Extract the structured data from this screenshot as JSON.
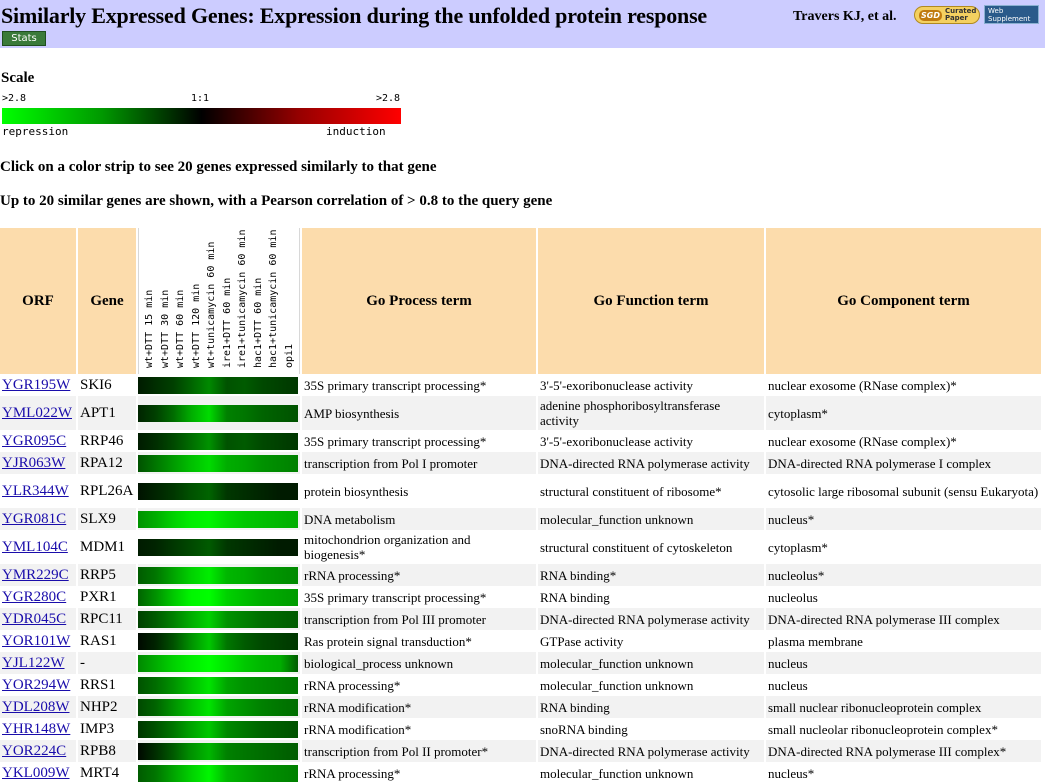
{
  "header": {
    "title": "Similarly Expressed Genes: Expression during the unfolded protein response",
    "authors": "Travers KJ, et al.",
    "sgd_badge_sgd": "SGD",
    "sgd_badge_line1": "Curated",
    "sgd_badge_line2": "Paper",
    "web_supp_line1": "Web",
    "web_supp_line2": "Supplement",
    "stats_button": "Stats"
  },
  "scale": {
    "title": "Scale",
    "left_label": ">2.8",
    "mid_label": "1:1",
    "right_label": ">2.8",
    "left_word": "repression",
    "right_word": "induction",
    "colors": {
      "repression": "#00ff00",
      "neutral": "#000000",
      "induction": "#ff0000"
    }
  },
  "instructions": {
    "line1": "Click on a color strip to see 20 genes expressed similarly to that gene",
    "line2": "Up to 20 similar genes are shown, with a Pearson correlation of > 0.8 to the query gene"
  },
  "table": {
    "headers": {
      "orf": "ORF",
      "gene": "Gene",
      "process": "Go Process term",
      "function": "Go Function term",
      "component": "Go Component term"
    },
    "conditions": [
      "wt+DTT 15 min",
      "wt+DTT 30 min",
      "wt+DTT 60 min",
      "wt+DTT 120 min",
      "wt+tunicamycin 60 min",
      "ire1+DTT 60 min",
      "ire1+tunicamycin 60 min",
      "hac1+DTT 60 min",
      "hac1+tunicamycin 60 min",
      "opi1"
    ],
    "rows": [
      {
        "orf": "YGR195W",
        "gene": "SKI6",
        "process": "35S primary transcript processing*",
        "function": "3'-5'-exoribonuclease activity",
        "component": "nuclear exosome (RNase complex)*",
        "strip": [
          0.3,
          0.5,
          0.7,
          1.1,
          1.5,
          0.9,
          1.0,
          0.8,
          0.7,
          0.6
        ]
      },
      {
        "orf": "YML022W",
        "gene": "APT1",
        "process": "AMP biosynthesis",
        "function": "adenine phosphoribosyltransferase activity",
        "component": "cytoplasm*",
        "strip": [
          0.4,
          0.7,
          1.2,
          1.9,
          2.4,
          1.4,
          1.3,
          1.1,
          1.0,
          0.9
        ]
      },
      {
        "orf": "YGR095C",
        "gene": "RRP46",
        "process": "35S primary transcript processing*",
        "function": "3'-5'-exoribonuclease activity",
        "component": "nuclear exosome (RNase complex)*",
        "strip": [
          0.3,
          0.5,
          0.8,
          1.2,
          1.6,
          0.9,
          1.0,
          0.8,
          0.7,
          0.6
        ]
      },
      {
        "orf": "YJR063W",
        "gene": "RPA12",
        "process": "transcription from Pol I promoter",
        "function": "DNA-directed RNA polymerase activity",
        "component": "DNA-directed RNA polymerase I complex",
        "strip": [
          0.9,
          1.3,
          1.7,
          2.1,
          2.4,
          1.9,
          1.8,
          1.6,
          1.5,
          1.4
        ]
      },
      {
        "orf": "YLR344W",
        "gene": "RPL26A",
        "process": "protein biosynthesis",
        "function": "structural constituent of ribosome*",
        "component": "cytosolic large ribosomal subunit (sensu Eukaryota)",
        "strip": [
          0.2,
          0.4,
          0.6,
          0.9,
          1.1,
          0.6,
          0.5,
          0.4,
          0.3,
          0.3
        ]
      },
      {
        "orf": "YGR081C",
        "gene": "SLX9",
        "process": "DNA metabolism",
        "function": "molecular_function unknown",
        "component": "nucleus*",
        "strip": [
          1.6,
          1.9,
          2.3,
          2.6,
          2.7,
          2.4,
          2.2,
          2.1,
          2.0,
          1.9
        ]
      },
      {
        "orf": "YML104C",
        "gene": "MDM1",
        "process": "mitochondrion organization and biogenesis*",
        "function": "structural constituent of cytoskeleton",
        "component": "cytoplasm*",
        "strip": [
          0.3,
          0.4,
          0.6,
          0.8,
          1.0,
          0.6,
          0.5,
          0.4,
          0.3,
          0.3
        ]
      },
      {
        "orf": "YMR229C",
        "gene": "RRP5",
        "process": "rRNA processing*",
        "function": "RNA binding*",
        "component": "nucleolus*",
        "strip": [
          1.0,
          1.3,
          1.8,
          2.3,
          2.6,
          2.0,
          1.9,
          1.7,
          1.6,
          1.5
        ]
      },
      {
        "orf": "YGR280C",
        "gene": "PXR1",
        "process": "35S primary transcript processing*",
        "function": "RNA binding",
        "component": "nucleolus",
        "strip": [
          1.1,
          1.6,
          2.2,
          2.7,
          2.8,
          2.3,
          2.1,
          1.9,
          1.8,
          1.7
        ]
      },
      {
        "orf": "YDR045C",
        "gene": "RPC11",
        "process": "transcription from Pol III promoter",
        "function": "DNA-directed RNA polymerase activity",
        "component": "DNA-directed RNA polymerase III complex",
        "strip": [
          0.7,
          1.0,
          1.4,
          1.9,
          2.3,
          1.6,
          1.4,
          1.2,
          1.1,
          1.0
        ]
      },
      {
        "orf": "YOR101W",
        "gene": "RAS1",
        "process": "Ras protein signal transduction*",
        "function": "GTPase activity",
        "component": "plasma membrane",
        "strip": [
          0.1,
          0.4,
          0.9,
          1.6,
          2.2,
          1.3,
          1.0,
          0.8,
          0.7,
          0.6
        ]
      },
      {
        "orf": "YJL122W",
        "gene": "-",
        "process": "biological_process unknown",
        "function": "molecular_function unknown",
        "component": "nucleus",
        "strip": [
          1.5,
          1.9,
          2.3,
          2.6,
          2.8,
          2.5,
          2.2,
          2.0,
          1.9,
          1.0
        ]
      },
      {
        "orf": "YOR294W",
        "gene": "RRS1",
        "process": "rRNA processing*",
        "function": "molecular_function unknown",
        "component": "nucleus",
        "strip": [
          0.9,
          1.2,
          1.6,
          2.1,
          2.5,
          1.8,
          1.6,
          1.5,
          1.4,
          1.3
        ]
      },
      {
        "orf": "YDL208W",
        "gene": "NHP2",
        "process": "rRNA modification*",
        "function": "RNA binding",
        "component": "small nuclear ribonucleoprotein complex",
        "strip": [
          0.8,
          1.1,
          1.6,
          2.1,
          2.5,
          1.8,
          1.6,
          1.4,
          1.3,
          1.2
        ]
      },
      {
        "orf": "YHR148W",
        "gene": "IMP3",
        "process": "rRNA modification*",
        "function": "snoRNA binding",
        "component": "small nucleolar ribonucleoprotein complex*",
        "strip": [
          0.6,
          0.9,
          1.3,
          1.8,
          2.2,
          1.5,
          1.3,
          1.1,
          1.0,
          0.9
        ]
      },
      {
        "orf": "YOR224C",
        "gene": "RPB8",
        "process": "transcription from Pol II promoter*",
        "function": "DNA-directed RNA polymerase activity",
        "component": "DNA-directed RNA polymerase III complex*",
        "strip": [
          0.1,
          0.5,
          1.0,
          1.6,
          2.0,
          1.4,
          1.3,
          1.2,
          1.1,
          1.0
        ]
      },
      {
        "orf": "YKL009W",
        "gene": "MRT4",
        "process": "rRNA processing*",
        "function": "molecular_function unknown",
        "component": "nucleus*",
        "strip": [
          1.0,
          1.3,
          1.8,
          2.3,
          2.7,
          2.0,
          1.8,
          1.6,
          1.5,
          1.4
        ]
      }
    ]
  }
}
